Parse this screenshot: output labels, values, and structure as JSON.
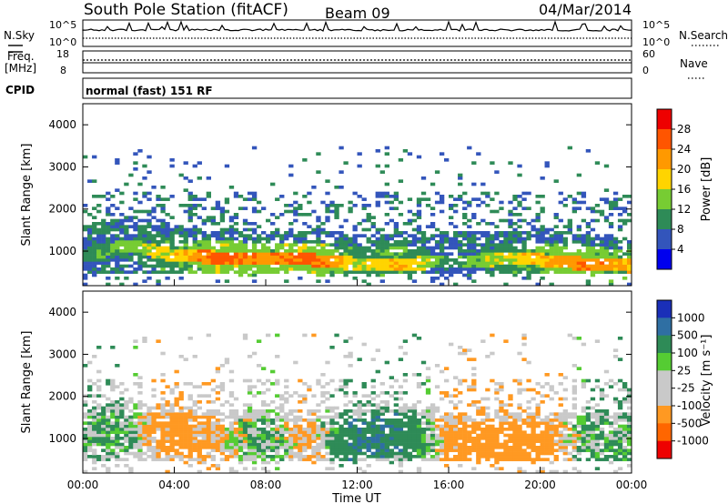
{
  "header": {
    "station": "South Pole Station (fitACF)",
    "beam": "Beam 09",
    "date": "04/Mar/2014"
  },
  "strip_panels": {
    "nsky_label": "N.Sky",
    "nsearch_label": "N.Search",
    "nsky_ticks": [
      "10^5",
      "10^0"
    ],
    "nsearch_ticks": [
      "10^5",
      "10^0"
    ],
    "freq_label_1": "Freq.",
    "freq_label_2": "[MHz]",
    "freq_ticks": [
      "18",
      "8"
    ],
    "nave_label": "Nave",
    "nave_ticks": [
      "60",
      "0"
    ],
    "cpid_label": "CPID",
    "cpid_text": "normal (fast) 151 RF"
  },
  "colorbars": {
    "power": {
      "label": "Power [dB]",
      "ticks": [
        "28",
        "24",
        "20",
        "16",
        "12",
        "8",
        "4"
      ],
      "colors": [
        "#ee0000",
        "#ff5500",
        "#ff9900",
        "#ffd400",
        "#77cc33",
        "#2e8b57",
        "#3355bb",
        "#0000ee"
      ]
    },
    "velocity": {
      "label": "Velocity [m s⁻¹]",
      "ticks": [
        "1000",
        "500",
        "100",
        "25",
        "-25",
        "-100",
        "-500",
        "-1000"
      ],
      "colors": [
        "#1a2fb8",
        "#2f6fa3",
        "#2e8b57",
        "#55cc33",
        "#c9c9c9",
        "#c9c9c9",
        "#ff9922",
        "#ff6600",
        "#ee0000"
      ]
    }
  },
  "chart_data": [
    {
      "type": "heatmap",
      "panel": "power",
      "ylabel": "Slant Range [km]",
      "ylim": [
        180,
        4500
      ],
      "yticks": [
        1000,
        2000,
        3000,
        4000
      ],
      "xlim": [
        0,
        24
      ],
      "main_echo_band": {
        "hours": [
          0,
          2,
          4,
          6,
          8,
          10,
          12,
          14,
          16,
          18,
          20,
          22,
          24
        ],
        "range_km": [
          900,
          1150,
          900,
          850,
          800,
          800,
          700,
          700,
          750,
          800,
          800,
          700,
          650
        ],
        "peak_power_db": [
          10,
          14,
          18,
          26,
          22,
          26,
          16,
          20,
          10,
          16,
          20,
          24,
          20
        ]
      }
    },
    {
      "type": "heatmap",
      "panel": "velocity",
      "ylabel": "Slant Range [km]",
      "ylim": [
        180,
        4500
      ],
      "yticks": [
        1000,
        2000,
        3000,
        4000
      ],
      "xlabel": "Time UT",
      "xlim": [
        0,
        24
      ],
      "xticks": [
        "00:00",
        "04:00",
        "08:00",
        "12:00",
        "16:00",
        "20:00",
        "00:00"
      ],
      "main_echo_band": {
        "hours": [
          0,
          2,
          4,
          6,
          8,
          10,
          12,
          14,
          16,
          18,
          20,
          22,
          24
        ],
        "range_km": [
          1000,
          1200,
          1100,
          1000,
          1000,
          1000,
          1000,
          1100,
          900,
          900,
          900,
          900,
          900
        ],
        "velocity_m_s": [
          100,
          100,
          -300,
          -100,
          100,
          -200,
          500,
          400,
          -200,
          -300,
          -300,
          100,
          100
        ]
      }
    }
  ]
}
